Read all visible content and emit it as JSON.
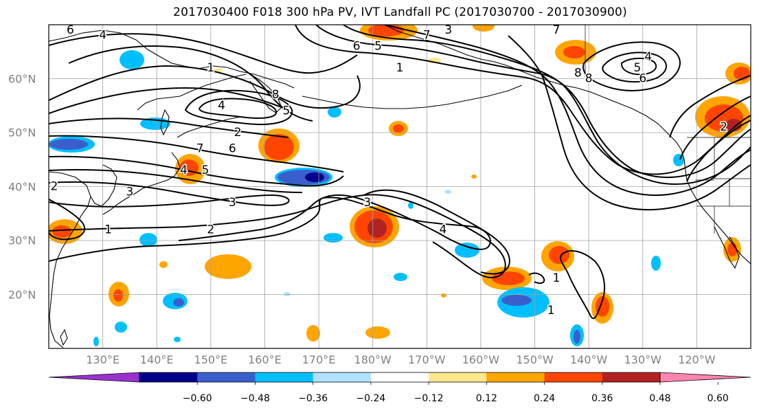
{
  "title": "2017030400 F018 300 hPa PV, IVT Landfall PC (2017030700 - 2017030900)",
  "map": {
    "lon_range": [
      120,
      250
    ],
    "lat_range": [
      10,
      70
    ],
    "lat_labels": [
      {
        "lat": 60,
        "text": "60°N"
      },
      {
        "lat": 50,
        "text": "50°N"
      },
      {
        "lat": 40,
        "text": "40°N"
      },
      {
        "lat": 30,
        "text": "30°N"
      },
      {
        "lat": 20,
        "text": "20°N"
      }
    ],
    "lon_labels": [
      {
        "lon": 130,
        "text": "130°E"
      },
      {
        "lon": 140,
        "text": "140°E"
      },
      {
        "lon": 150,
        "text": "150°E"
      },
      {
        "lon": 160,
        "text": "160°E"
      },
      {
        "lon": 170,
        "text": "170°E"
      },
      {
        "lon": 180,
        "text": "180°W"
      },
      {
        "lon": 190,
        "text": "170°W"
      },
      {
        "lon": 200,
        "text": "160°W"
      },
      {
        "lon": 210,
        "text": "150°W"
      },
      {
        "lon": 220,
        "text": "140°W"
      },
      {
        "lon": 230,
        "text": "130°W"
      },
      {
        "lon": 240,
        "text": "120°W"
      }
    ],
    "contour_labels": [
      {
        "text": "6",
        "lon": 124,
        "lat": 69
      },
      {
        "text": "4",
        "lon": 130,
        "lat": 68
      },
      {
        "text": "1",
        "lon": 150,
        "lat": 62
      },
      {
        "text": "4",
        "lon": 152,
        "lat": 55
      },
      {
        "text": "8",
        "lon": 162,
        "lat": 57
      },
      {
        "text": "5",
        "lon": 164,
        "lat": 54
      },
      {
        "text": "2",
        "lon": 155,
        "lat": 50
      },
      {
        "text": "6",
        "lon": 154,
        "lat": 47
      },
      {
        "text": "7",
        "lon": 148,
        "lat": 47
      },
      {
        "text": "5",
        "lon": 149,
        "lat": 43
      },
      {
        "text": "4",
        "lon": 145,
        "lat": 43
      },
      {
        "text": "3",
        "lon": 135,
        "lat": 39
      },
      {
        "text": "2",
        "lon": 121,
        "lat": 40
      },
      {
        "text": "3",
        "lon": 154,
        "lat": 37
      },
      {
        "text": "2",
        "lon": 150,
        "lat": 32
      },
      {
        "text": "3",
        "lon": 179,
        "lat": 37
      },
      {
        "text": "1",
        "lon": 131,
        "lat": 32
      },
      {
        "text": "4",
        "lon": 193,
        "lat": 32
      },
      {
        "text": "1",
        "lon": 214,
        "lat": 23
      },
      {
        "text": "1",
        "lon": 213,
        "lat": 17
      },
      {
        "text": "1",
        "lon": 185,
        "lat": 62
      },
      {
        "text": "6",
        "lon": 177,
        "lat": 66
      },
      {
        "text": "5",
        "lon": 181,
        "lat": 66
      },
      {
        "text": "3",
        "lon": 194,
        "lat": 69
      },
      {
        "text": "7",
        "lon": 190,
        "lat": 68
      },
      {
        "text": "8",
        "lon": 218,
        "lat": 61
      },
      {
        "text": "8",
        "lon": 220,
        "lat": 60
      },
      {
        "text": "7",
        "lon": 214,
        "lat": 69
      },
      {
        "text": "4",
        "lon": 231,
        "lat": 64
      },
      {
        "text": "5",
        "lon": 229,
        "lat": 62
      },
      {
        "text": "6",
        "lon": 230,
        "lat": 60
      },
      {
        "text": "2",
        "lon": 245,
        "lat": 51
      }
    ]
  },
  "colorbar": {
    "ticks": [
      "−0.60",
      "−0.48",
      "−0.36",
      "−0.24",
      "−0.12",
      "0.12",
      "0.24",
      "0.36",
      "0.48",
      "0.60"
    ],
    "colors": [
      "#9932cc",
      "#00008b",
      "#3a5fcd",
      "#00bfff",
      "#b0e2ff",
      "#ffffff",
      "#ffe88c",
      "#ffa500",
      "#ff4500",
      "#b22222",
      "#ff85b0"
    ]
  },
  "colors": {
    "grid": "#a0a0a0",
    "contour": "#000000",
    "coast": "#000000"
  }
}
